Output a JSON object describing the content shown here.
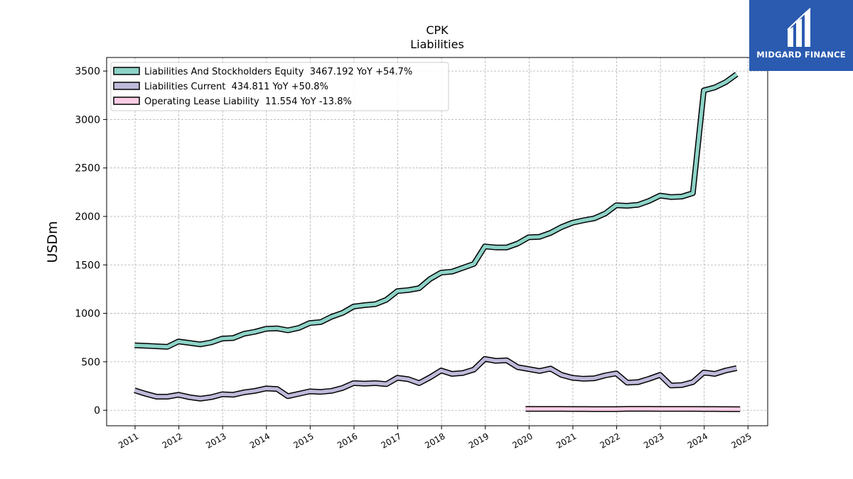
{
  "chart_data": {
    "type": "line",
    "title": "CPK",
    "subtitle": "Liabilities",
    "ylabel": "USDm",
    "xlabel": "",
    "xlim": [
      2010.35,
      2025.45
    ],
    "ylim": [
      -160,
      3640
    ],
    "yticks": [
      0,
      500,
      1000,
      1500,
      2000,
      2500,
      3000,
      3500
    ],
    "xticks": [
      2011,
      2012,
      2013,
      2014,
      2015,
      2016,
      2017,
      2018,
      2019,
      2020,
      2021,
      2022,
      2023,
      2024,
      2025
    ],
    "grid": true,
    "legend_position": "top-left",
    "series": [
      {
        "name": "Liabilities And Stockholders Equity  3467.192 YoY +54.7%",
        "color": "#8dd3c7",
        "x": [
          2010.99,
          2011.24,
          2011.49,
          2011.74,
          2011.99,
          2012.24,
          2012.49,
          2012.74,
          2012.99,
          2013.24,
          2013.49,
          2013.74,
          2013.99,
          2014.24,
          2014.49,
          2014.74,
          2014.99,
          2015.24,
          2015.49,
          2015.74,
          2015.99,
          2016.24,
          2016.49,
          2016.74,
          2016.99,
          2017.24,
          2017.49,
          2017.74,
          2017.99,
          2018.24,
          2018.49,
          2018.74,
          2018.99,
          2019.24,
          2019.49,
          2019.74,
          2019.99,
          2020.24,
          2020.49,
          2020.74,
          2020.99,
          2021.24,
          2021.49,
          2021.74,
          2021.99,
          2022.24,
          2022.49,
          2022.74,
          2022.99,
          2023.24,
          2023.49,
          2023.74,
          2023.99,
          2024.24,
          2024.49,
          2024.74
        ],
        "values": [
          670,
          665,
          660,
          655,
          710,
          695,
          680,
          700,
          740,
          745,
          790,
          810,
          840,
          845,
          825,
          850,
          900,
          910,
          965,
          1005,
          1070,
          1085,
          1095,
          1140,
          1230,
          1240,
          1260,
          1355,
          1420,
          1430,
          1470,
          1510,
          1690,
          1680,
          1680,
          1720,
          1785,
          1790,
          1830,
          1890,
          1935,
          1960,
          1980,
          2030,
          2115,
          2110,
          2120,
          2160,
          2215,
          2200,
          2205,
          2240,
          3300,
          3330,
          3385,
          3467.192
        ]
      },
      {
        "name": "Liabilities Current  434.811 YoY +50.8%",
        "color": "#bebada",
        "x": [
          2010.99,
          2011.24,
          2011.49,
          2011.74,
          2011.99,
          2012.24,
          2012.49,
          2012.74,
          2012.99,
          2013.24,
          2013.49,
          2013.74,
          2013.99,
          2014.24,
          2014.49,
          2014.74,
          2014.99,
          2015.24,
          2015.49,
          2015.74,
          2015.99,
          2016.24,
          2016.49,
          2016.74,
          2016.99,
          2017.24,
          2017.49,
          2017.74,
          2017.99,
          2018.24,
          2018.49,
          2018.74,
          2018.99,
          2019.24,
          2019.49,
          2019.74,
          2019.99,
          2020.24,
          2020.49,
          2020.74,
          2020.99,
          2021.24,
          2021.49,
          2021.74,
          2021.99,
          2022.24,
          2022.49,
          2022.74,
          2022.99,
          2023.24,
          2023.49,
          2023.74,
          2023.99,
          2024.24,
          2024.49,
          2024.74
        ],
        "values": [
          205,
          170,
          140,
          140,
          160,
          135,
          120,
          135,
          165,
          160,
          185,
          200,
          225,
          220,
          145,
          170,
          195,
          190,
          200,
          230,
          280,
          275,
          280,
          270,
          335,
          320,
          280,
          340,
          410,
          375,
          385,
          420,
          530,
          510,
          515,
          445,
          425,
          405,
          430,
          365,
          335,
          325,
          330,
          360,
          380,
          285,
          290,
          325,
          365,
          255,
          260,
          290,
          390,
          375,
          410,
          434.811
        ]
      },
      {
        "name": "Operating Lease Liability  11.554 YoY -13.8%",
        "color": "#fccde5",
        "x": [
          2019.92,
          2020.24,
          2020.49,
          2020.74,
          2020.99,
          2021.24,
          2021.49,
          2021.74,
          2021.99,
          2022.24,
          2022.49,
          2022.74,
          2022.99,
          2023.24,
          2023.49,
          2023.74,
          2023.99,
          2024.24,
          2024.49,
          2024.82
        ],
        "values": [
          14,
          14,
          14,
          14,
          13,
          13,
          12,
          12,
          12,
          15,
          15,
          15,
          14,
          14,
          14,
          13.5,
          13,
          12.5,
          12,
          11.554
        ]
      }
    ]
  },
  "branding": {
    "name": "MIDGARD FINANCE",
    "background": "#2a5bb0",
    "icon": "midgard-logo-icon"
  }
}
